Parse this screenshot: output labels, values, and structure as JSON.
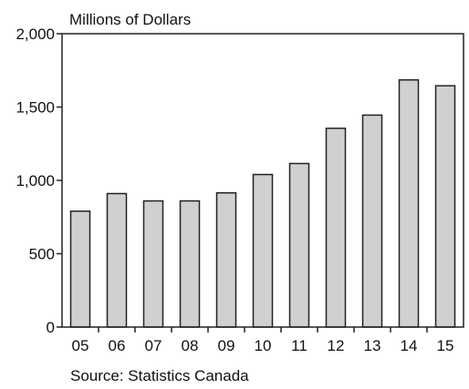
{
  "chart_data": {
    "type": "bar",
    "ylabel": "Millions of Dollars",
    "categories": [
      "05",
      "06",
      "07",
      "08",
      "09",
      "10",
      "11",
      "12",
      "13",
      "14",
      "15"
    ],
    "values": [
      790,
      910,
      860,
      860,
      915,
      1040,
      1115,
      1355,
      1445,
      1685,
      1645
    ],
    "ylim": [
      0,
      2000
    ],
    "yticks": [
      0,
      500,
      1000,
      1500,
      2000
    ],
    "ytick_labels": [
      "0",
      "500",
      "1,000",
      "1,500",
      "2,000"
    ],
    "grid": false,
    "colors": {
      "bar_fill": "#d0d0d0",
      "bar_stroke": "#222222"
    }
  },
  "footnote": "Source: Statistics Canada"
}
